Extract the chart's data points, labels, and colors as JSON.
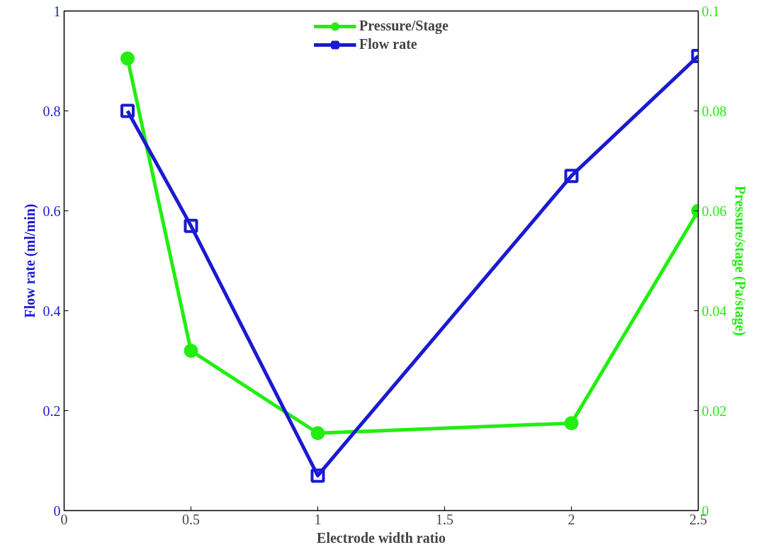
{
  "chart_data": {
    "type": "line",
    "xlabel": "Electrode width ratio",
    "ylabel": "Flow rate (ml/min)",
    "y2label": "Pressure/stage (Pa/stage)",
    "x": [
      0.25,
      0.5,
      1,
      2,
      2.5
    ],
    "series": [
      {
        "name": "Pressure/Stage",
        "color": "#22ee11",
        "axis": "y2",
        "marker": "circle",
        "values": [
          0.0905,
          0.032,
          0.0155,
          0.0175,
          0.06
        ]
      },
      {
        "name": "Flow rate",
        "color": "#1a1ad0",
        "axis": "y",
        "marker": "square",
        "values": [
          0.8,
          0.57,
          0.07,
          0.67,
          0.91
        ]
      }
    ],
    "xlim": [
      0,
      2.5
    ],
    "xticks": [
      0,
      0.5,
      1,
      1.5,
      2,
      2.5
    ],
    "ylim": [
      0,
      1
    ],
    "yticks": [
      0,
      0.2,
      0.4,
      0.6,
      0.8,
      1
    ],
    "y2lim": [
      0,
      0.1
    ],
    "y2ticks": [
      0,
      0.02,
      0.04,
      0.06,
      0.08,
      0.1
    ],
    "grid": false,
    "legend": "top",
    "line_style": "solid"
  }
}
